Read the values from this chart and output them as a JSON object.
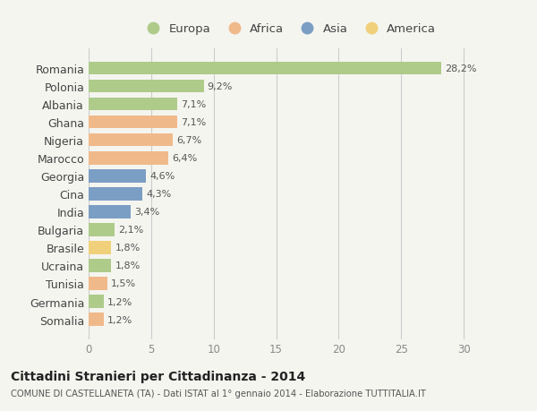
{
  "countries": [
    "Romania",
    "Polonia",
    "Albania",
    "Ghana",
    "Nigeria",
    "Marocco",
    "Georgia",
    "Cina",
    "India",
    "Bulgaria",
    "Brasile",
    "Ucraina",
    "Tunisia",
    "Germania",
    "Somalia"
  ],
  "values": [
    28.2,
    9.2,
    7.1,
    7.1,
    6.7,
    6.4,
    4.6,
    4.3,
    3.4,
    2.1,
    1.8,
    1.8,
    1.5,
    1.2,
    1.2
  ],
  "labels": [
    "28,2%",
    "9,2%",
    "7,1%",
    "7,1%",
    "6,7%",
    "6,4%",
    "4,6%",
    "4,3%",
    "3,4%",
    "2,1%",
    "1,8%",
    "1,8%",
    "1,5%",
    "1,2%",
    "1,2%"
  ],
  "continents": [
    "Europa",
    "Europa",
    "Europa",
    "Africa",
    "Africa",
    "Africa",
    "Asia",
    "Asia",
    "Asia",
    "Europa",
    "America",
    "Europa",
    "Africa",
    "Europa",
    "Africa"
  ],
  "colors": {
    "Europa": "#aecb8a",
    "Africa": "#f0b98a",
    "Asia": "#7b9ec4",
    "America": "#f0d07a"
  },
  "xlim": [
    0,
    32
  ],
  "xticks": [
    0,
    5,
    10,
    15,
    20,
    25,
    30
  ],
  "title": "Cittadini Stranieri per Cittadinanza - 2014",
  "subtitle": "COMUNE DI CASTELLANETA (TA) - Dati ISTAT al 1° gennaio 2014 - Elaborazione TUTTITALIA.IT",
  "background_color": "#f5f5f0",
  "bar_height": 0.72,
  "legend_order": [
    "Europa",
    "Africa",
    "Asia",
    "America"
  ]
}
